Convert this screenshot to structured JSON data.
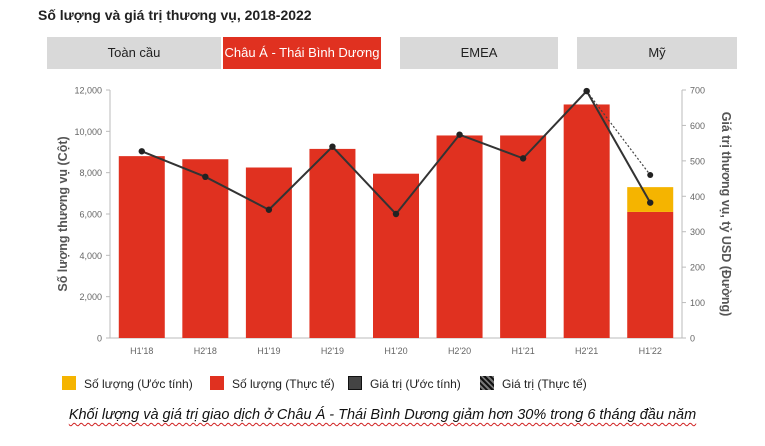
{
  "title": "Số lượng và giá trị thương vụ, 2018-2022",
  "tabs": [
    {
      "label": "Toàn cầu",
      "active": false
    },
    {
      "label": "Châu Á - Thái Bình Dương",
      "active": true
    },
    {
      "label": "EMEA",
      "active": false
    },
    {
      "label": "Mỹ",
      "active": false
    }
  ],
  "colors": {
    "actual_bar": "#e03120",
    "estimate_bar": "#f5b400",
    "line": "#333333",
    "tab_active": "#e03120",
    "tab_inactive": "#d9d9d9"
  },
  "chart_data": {
    "type": "bar",
    "categories": [
      "H1'18",
      "H2'18",
      "H1'19",
      "H2'19",
      "H1'20",
      "H2'20",
      "H1'21",
      "H2'21",
      "H1'22"
    ],
    "left_axis": {
      "label": "Số lượng thương vụ (Cột)",
      "ylim": [
        0,
        12000
      ],
      "ticks": [
        "0",
        "2,000",
        "4,000",
        "6,000",
        "8,000",
        "10,000",
        "12,000"
      ]
    },
    "right_axis": {
      "label": "Giá trị thương vụ, tỷ USD (Đường)",
      "ylim": [
        0,
        700
      ],
      "ticks": [
        "0",
        "100",
        "200",
        "300",
        "400",
        "500",
        "600",
        "700"
      ]
    },
    "series": [
      {
        "name": "Số lượng (Thực tế)",
        "kind": "bar",
        "axis": "left",
        "values": [
          8800,
          8650,
          8250,
          9150,
          7950,
          9800,
          9800,
          11300,
          6100
        ]
      },
      {
        "name": "Số lượng (Ước tính)",
        "kind": "bar-stacked",
        "axis": "left",
        "values": [
          null,
          null,
          null,
          null,
          null,
          null,
          null,
          null,
          1200
        ]
      },
      {
        "name": "Giá trị (Ước tính)",
        "kind": "line",
        "axis": "right",
        "values": [
          527,
          455,
          362,
          540,
          350,
          574,
          507,
          697,
          382
        ]
      },
      {
        "name": "Giá trị (Thực tế)",
        "kind": "dotted-line",
        "axis": "right",
        "values": [
          null,
          null,
          null,
          null,
          null,
          null,
          null,
          697,
          460
        ]
      }
    ],
    "legend": [
      {
        "label": "Số lượng (Ước tính)",
        "style": "estimate_bar"
      },
      {
        "label": "Số lượng (Thực tế)",
        "style": "actual_bar"
      },
      {
        "label": "Giá trị (Ước tính)",
        "style": "solid_line"
      },
      {
        "label": "Giá trị (Thực tế)",
        "style": "dotted_line"
      }
    ],
    "legend_position": "bottom",
    "grid": false
  },
  "caption": "Khối lượng và giá trị giao dịch ở Châu Á - Thái Bình Dương giảm hơn 30% trong 6 tháng đầu năm"
}
